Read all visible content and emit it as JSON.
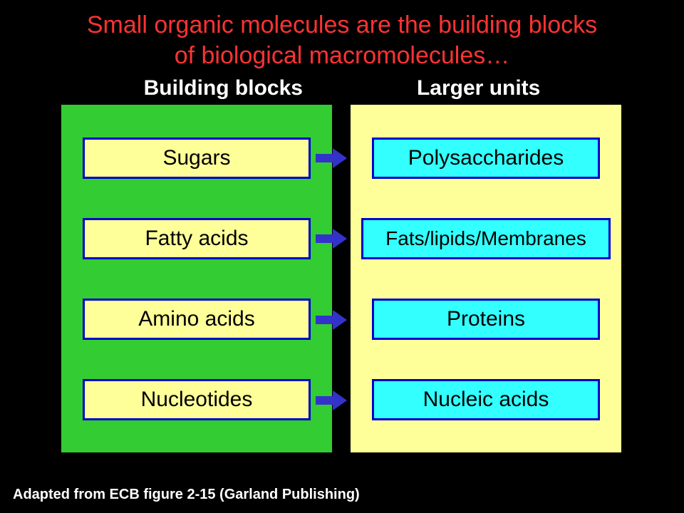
{
  "title": {
    "line1": "Small organic molecules are the building blocks",
    "line2": "of biological macromolecules…",
    "color": "#ff3333",
    "fontsize": 34
  },
  "headers": {
    "left": "Building blocks",
    "right": "Larger units",
    "color": "#ffffff",
    "fontsize": 30
  },
  "columns": {
    "left": {
      "bg": "#33cc33",
      "box_bg": "#ffff99",
      "box_border": "#0000cc",
      "items": [
        "Sugars",
        "Fatty acids",
        "Amino acids",
        "Nucleotides"
      ]
    },
    "right": {
      "bg": "#ffff99",
      "box_bg": "#33ffff",
      "box_border": "#0000cc",
      "items": [
        "Polysaccharides",
        "Fats/lipids/Membranes",
        "Proteins",
        "Nucleic acids"
      ]
    }
  },
  "arrow": {
    "color": "#3333cc"
  },
  "footer": {
    "text": "Adapted from ECB figure 2-15 (Garland Publishing)",
    "color": "#ffffff",
    "fontsize": 20
  },
  "background_color": "#000000"
}
